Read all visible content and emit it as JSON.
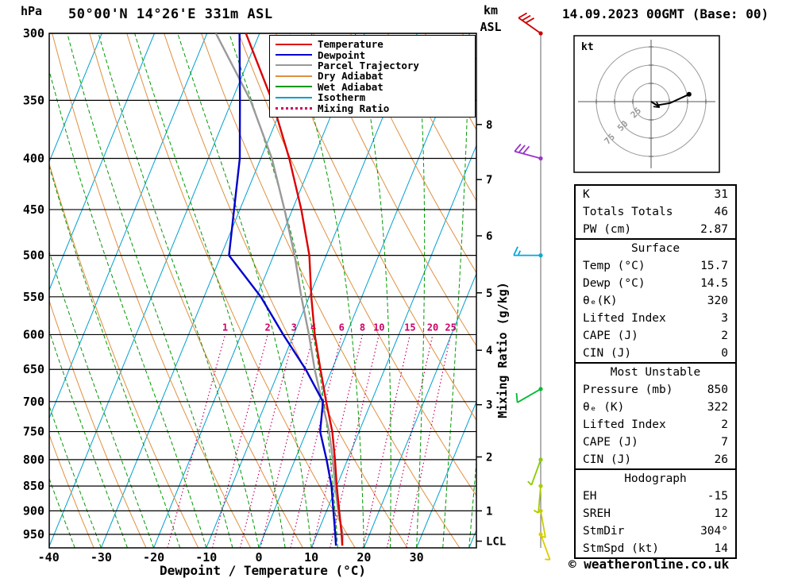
{
  "header": {
    "station": "50°00'N 14°26'E 331m ASL",
    "datetime": "14.09.2023 00GMT (Base: 00)",
    "pressure_unit": "hPa",
    "altitude_unit": [
      "km",
      "ASL"
    ]
  },
  "axes": {
    "x_label": "Dewpoint / Temperature (°C)",
    "right_label": "Mixing Ratio (g/kg)",
    "pressure_ticks": [
      300,
      350,
      400,
      450,
      500,
      550,
      600,
      650,
      700,
      750,
      800,
      850,
      900,
      950
    ],
    "temp_ticks": [
      -40,
      -30,
      -20,
      -10,
      0,
      10,
      20,
      30
    ],
    "km_ticks": [
      {
        "label": "8",
        "p": 370
      },
      {
        "label": "7",
        "p": 420
      },
      {
        "label": "6",
        "p": 478
      },
      {
        "label": "5",
        "p": 545
      },
      {
        "label": "4",
        "p": 622
      },
      {
        "label": "3",
        "p": 705
      },
      {
        "label": "2",
        "p": 795
      },
      {
        "label": "1",
        "p": 900
      },
      {
        "label": "LCL",
        "p": 965
      }
    ]
  },
  "legend": {
    "items": [
      {
        "label": "Temperature",
        "color": "#dd0000",
        "style": "solid"
      },
      {
        "label": "Dewpoint",
        "color": "#0000cc",
        "style": "solid"
      },
      {
        "label": "Parcel Trajectory",
        "color": "#999999",
        "style": "solid"
      },
      {
        "label": "Dry Adiabat",
        "color": "#e09040",
        "style": "solid"
      },
      {
        "label": "Wet Adiabat",
        "color": "#009900",
        "style": "solid"
      },
      {
        "label": "Isotherm",
        "color": "#00a0d0",
        "style": "solid"
      },
      {
        "label": "Mixing Ratio",
        "color": "#cc0066",
        "style": "dotted"
      }
    ]
  },
  "chart_data": {
    "type": "skewt-log-p",
    "title": "50°00'N 14°26'E 331m ASL",
    "pressure_range": [
      300,
      980
    ],
    "temp_axis_range": [
      -40,
      40
    ],
    "pressure_levels": [
      975,
      950,
      900,
      850,
      800,
      750,
      700,
      650,
      600,
      550,
      500,
      450,
      400,
      350,
      300
    ],
    "series": [
      {
        "name": "Temperature",
        "color": "#dd0000",
        "values": [
          15.7,
          14.7,
          12.4,
          10.0,
          7.6,
          4.9,
          1.4,
          -2.2,
          -6.0,
          -9.6,
          -13.2,
          -18.3,
          -24.6,
          -32.4,
          -42.6
        ]
      },
      {
        "name": "Dewpoint",
        "color": "#0000cc",
        "values": [
          14.5,
          13.5,
          11.3,
          9.0,
          6.0,
          2.6,
          0.8,
          -5.0,
          -12.0,
          -19.2,
          -28.5,
          -31.1,
          -34.0,
          -38.5,
          -43.8
        ]
      },
      {
        "name": "Parcel Trajectory",
        "color": "#999999",
        "values": [
          15.7,
          14.9,
          12.2,
          9.7,
          7.2,
          4.3,
          0.6,
          -3.3,
          -7.1,
          -11.5,
          -16.0,
          -21.5,
          -27.9,
          -36.5,
          -48.3
        ]
      }
    ],
    "background": {
      "isotherms": {
        "min": -80,
        "max": 40,
        "step": 10
      },
      "dry_adiabats": {
        "min": -40,
        "max": 120,
        "step": 10
      },
      "wet_adiabats": {
        "min": -40,
        "max": 50,
        "step": 5
      },
      "mixing_ratio_lines": [
        1,
        2,
        3,
        4,
        6,
        8,
        10,
        15,
        20,
        25
      ]
    },
    "mixing_ratio_labels": [
      "1",
      "2",
      "3",
      "4",
      "6",
      "8",
      "10",
      "15",
      "20",
      "25"
    ],
    "colors": {
      "isotherm": "#00a0d0",
      "dry_adiabat": "#e09040",
      "wet_adiabat": "#009900",
      "mixing_ratio": "#cc0066",
      "grid": "#000000",
      "temperature": "#dd0000",
      "dewpoint": "#0000cc",
      "parcel": "#999999",
      "barb_axis": "#666666"
    },
    "wind_barbs": [
      {
        "p": 300,
        "speed_kt": 30,
        "dir_deg": 305,
        "color": "#cc0000"
      },
      {
        "p": 400,
        "speed_kt": 30,
        "dir_deg": 285,
        "color": "#9933cc"
      },
      {
        "p": 500,
        "speed_kt": 15,
        "dir_deg": 270,
        "color": "#00aadd"
      },
      {
        "p": 680,
        "speed_kt": 12,
        "dir_deg": 240,
        "color": "#00bb33"
      },
      {
        "p": 800,
        "speed_kt": 8,
        "dir_deg": 200,
        "color": "#88cc00"
      },
      {
        "p": 850,
        "speed_kt": 7,
        "dir_deg": 185,
        "color": "#aacc00"
      },
      {
        "p": 900,
        "speed_kt": 5,
        "dir_deg": 170,
        "color": "#cccc00"
      },
      {
        "p": 950,
        "speed_kt": 5,
        "dir_deg": 160,
        "color": "#ddcc00"
      }
    ]
  },
  "hodograph": {
    "unit_label": "kt",
    "ring_values": [
      25,
      50,
      75
    ],
    "ring_labels": [
      "25",
      "50",
      "75"
    ],
    "trace_kt": [
      {
        "du": 0,
        "dv": 0
      },
      {
        "du": 8,
        "dv": -5
      },
      {
        "du": 26,
        "dv": -2
      },
      {
        "du": 52,
        "dv": 10
      }
    ],
    "storm_motion": {
      "dir_deg": 304,
      "speed_kt": 14
    }
  },
  "panel": {
    "stats": [
      {
        "label": "K",
        "value": "31"
      },
      {
        "label": "Totals Totals",
        "value": "46"
      },
      {
        "label": "PW (cm)",
        "value": "2.87"
      }
    ],
    "surface": {
      "title": "Surface",
      "rows": [
        {
          "label": "Temp (°C)",
          "value": "15.7"
        },
        {
          "label": "Dewp (°C)",
          "value": "14.5"
        },
        {
          "label": "θₑ(K)",
          "value": "320"
        },
        {
          "label": "Lifted Index",
          "value": "3"
        },
        {
          "label": "CAPE (J)",
          "value": "2"
        },
        {
          "label": "CIN (J)",
          "value": "0"
        }
      ]
    },
    "most_unstable": {
      "title": "Most Unstable",
      "rows": [
        {
          "label": "Pressure (mb)",
          "value": "850"
        },
        {
          "label": "θₑ (K)",
          "value": "322"
        },
        {
          "label": "Lifted Index",
          "value": "2"
        },
        {
          "label": "CAPE (J)",
          "value": "7"
        },
        {
          "label": "CIN (J)",
          "value": "26"
        }
      ]
    },
    "hodograph": {
      "title": "Hodograph",
      "rows": [
        {
          "label": "EH",
          "value": "-15"
        },
        {
          "label": "SREH",
          "value": "12"
        },
        {
          "label": "StmDir",
          "value": "304°"
        },
        {
          "label": "StmSpd (kt)",
          "value": "14"
        }
      ]
    }
  },
  "footer": {
    "copyright": "© weatheronline.co.uk"
  }
}
